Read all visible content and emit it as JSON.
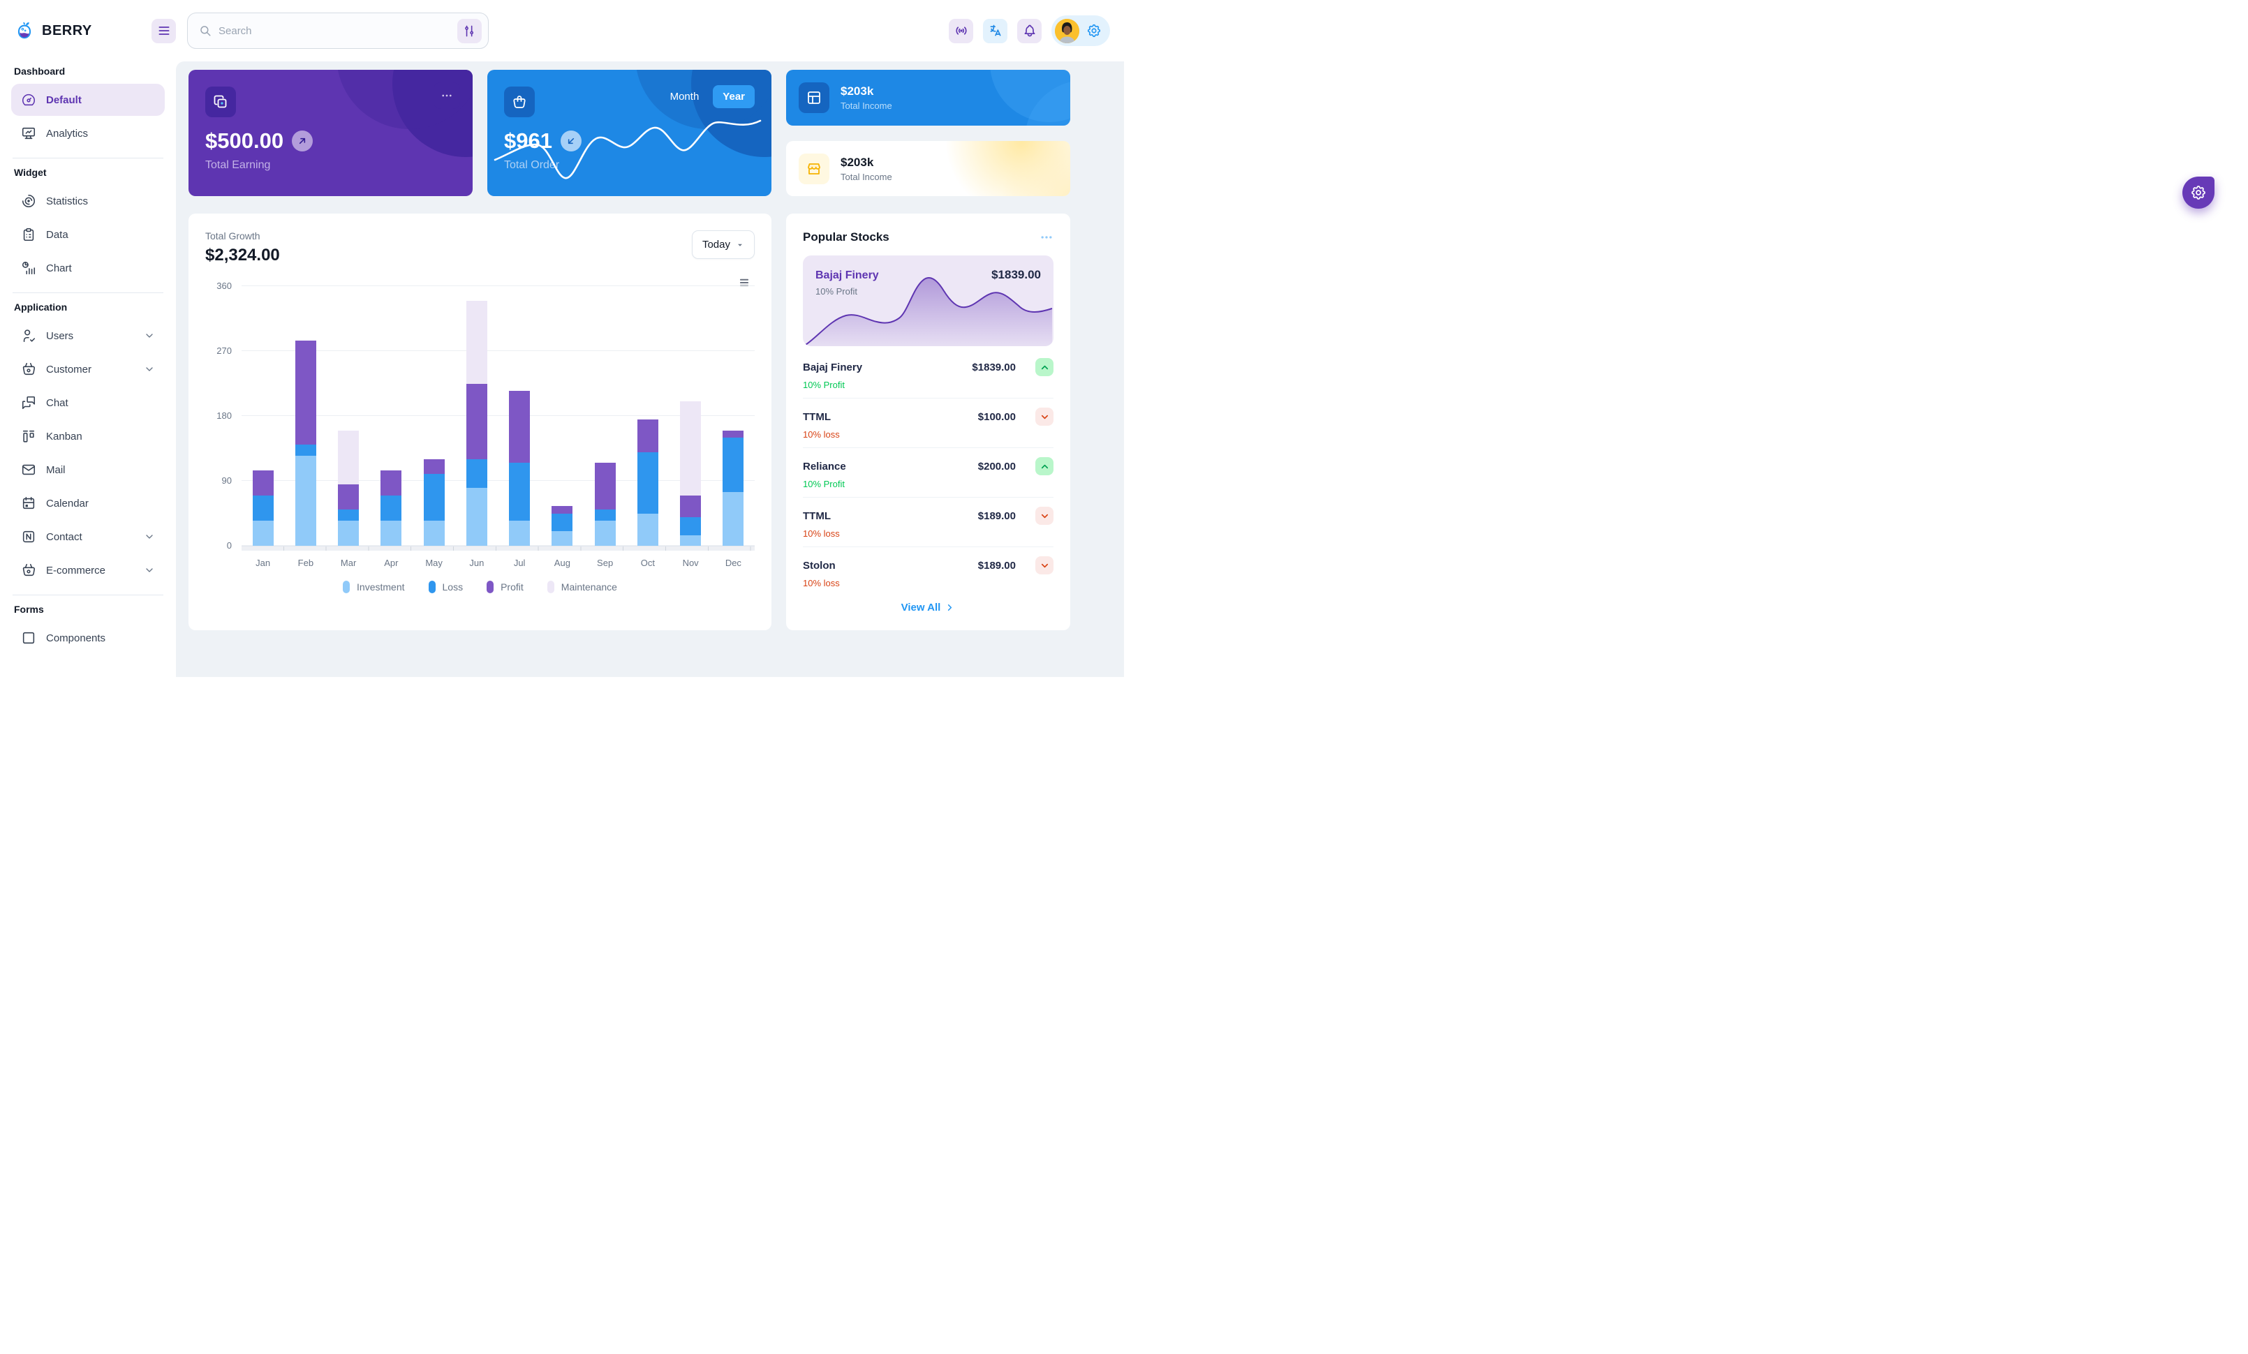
{
  "header": {
    "brand": "BERRY",
    "search_placeholder": "Search"
  },
  "sidebar": {
    "sections": [
      {
        "title": "Dashboard",
        "items": [
          {
            "label": "Default",
            "icon": "dashboard-icon",
            "active": true
          },
          {
            "label": "Analytics",
            "icon": "analytics-icon"
          }
        ]
      },
      {
        "title": "Widget",
        "items": [
          {
            "label": "Statistics",
            "icon": "chart-arcs-icon"
          },
          {
            "label": "Data",
            "icon": "clipboard-icon"
          },
          {
            "label": "Chart",
            "icon": "chart-infographic-icon"
          }
        ]
      },
      {
        "title": "Application",
        "items": [
          {
            "label": "Users",
            "icon": "user-check-icon",
            "chevron": true
          },
          {
            "label": "Customer",
            "icon": "basket-icon",
            "chevron": true
          },
          {
            "label": "Chat",
            "icon": "messages-icon"
          },
          {
            "label": "Kanban",
            "icon": "kanban-icon"
          },
          {
            "label": "Mail",
            "icon": "mail-icon"
          },
          {
            "label": "Calendar",
            "icon": "calendar-icon"
          },
          {
            "label": "Contact",
            "icon": "nfc-icon",
            "chevron": true
          },
          {
            "label": "E-commerce",
            "icon": "basket-icon",
            "chevron": true
          }
        ]
      },
      {
        "title": "Forms",
        "items": [
          {
            "label": "Components",
            "icon": "box-icon"
          }
        ]
      }
    ]
  },
  "cards": {
    "earning": {
      "value": "$500.00",
      "label": "Total Earning"
    },
    "order": {
      "value": "$961",
      "label": "Total Order",
      "toggle": [
        "Month",
        "Year"
      ],
      "active_toggle": "Year"
    },
    "income_dark": {
      "value": "$203k",
      "label": "Total Income"
    },
    "income_light": {
      "value": "$203k",
      "label": "Total Income"
    }
  },
  "growth": {
    "title": "Total Growth",
    "value": "$2,324.00",
    "period": "Today",
    "chart_data": {
      "type": "bar",
      "stacked": true,
      "categories": [
        "Jan",
        "Feb",
        "Mar",
        "Apr",
        "May",
        "Jun",
        "Jul",
        "Aug",
        "Sep",
        "Oct",
        "Nov",
        "Dec"
      ],
      "series": [
        {
          "name": "Investment",
          "color": "#90caf9",
          "values": [
            35,
            125,
            35,
            35,
            35,
            80,
            35,
            20,
            35,
            45,
            15,
            75
          ]
        },
        {
          "name": "Loss",
          "color": "#2f96ee",
          "values": [
            35,
            15,
            15,
            35,
            65,
            40,
            80,
            25,
            15,
            85,
            25,
            75
          ]
        },
        {
          "name": "Profit",
          "color": "#7e57c5",
          "values": [
            35,
            145,
            35,
            35,
            20,
            105,
            100,
            10,
            65,
            45,
            30,
            10
          ]
        },
        {
          "name": "Maintenance",
          "color": "#ede7f6",
          "values": [
            0,
            0,
            75,
            0,
            0,
            115,
            0,
            0,
            0,
            0,
            130,
            0
          ]
        }
      ],
      "ylim": [
        0,
        360
      ],
      "yticks": [
        0,
        90,
        180,
        270,
        360
      ],
      "grid": "horizontal",
      "legend_position": "bottom"
    }
  },
  "stocks": {
    "title": "Popular Stocks",
    "featured": {
      "name": "Bajaj Finery",
      "price": "$1839.00",
      "subtitle": "10% Profit"
    },
    "items": [
      {
        "name": "Bajaj Finery",
        "price": "$1839.00",
        "subtitle": "10% Profit",
        "trend": "up"
      },
      {
        "name": "TTML",
        "price": "$100.00",
        "subtitle": "10% loss",
        "trend": "down"
      },
      {
        "name": "Reliance",
        "price": "$200.00",
        "subtitle": "10% Profit",
        "trend": "up"
      },
      {
        "name": "TTML",
        "price": "$189.00",
        "subtitle": "10% loss",
        "trend": "down"
      },
      {
        "name": "Stolon",
        "price": "$189.00",
        "subtitle": "10% loss",
        "trend": "down"
      }
    ],
    "view_all": "View All"
  },
  "colors": {
    "background": "#eef2f6",
    "purple_main": "#5e35b1",
    "purple_dark": "#4527a0",
    "purple_light": "#ede7f6",
    "blue_main": "#1e88e5",
    "blue_dark": "#1565c0",
    "blue_chip": "#2f9bf3",
    "success": "#00c853",
    "loss_orange": "#d84315",
    "warning_light": "#fff8e1"
  }
}
